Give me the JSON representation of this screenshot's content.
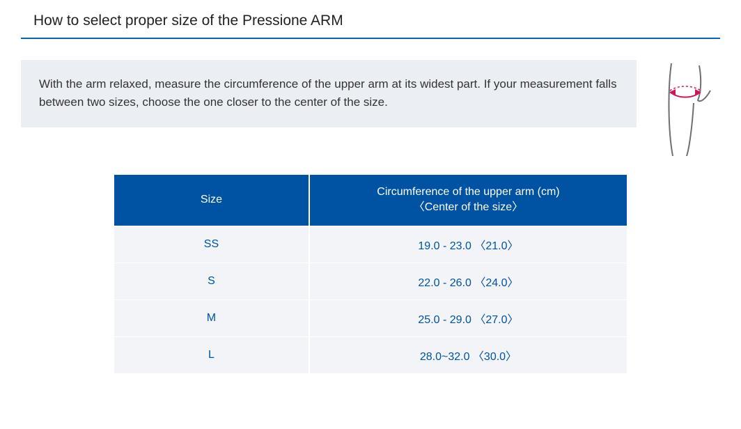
{
  "title": "How to select proper size of the Pressione ARM",
  "title_underline_color": "#0a63b0",
  "info": {
    "text": "With the arm relaxed, measure the circumference of the upper arm at its widest part. If your measurement falls between two sizes, choose the one closer to the center of the size.",
    "background_color": "#ebeff4",
    "text_color": "#333333"
  },
  "illustration": {
    "line_color": "#6f6f6f",
    "band_color": "#d4145a"
  },
  "table": {
    "header_bg": "#0052a3",
    "header_fg": "#ffffff",
    "row_bg": "#f2f4f8",
    "cell_fg": "#0052a3",
    "columns": [
      "Size",
      "Circumference of the upper arm (cm)\n〈Center of the size〉"
    ],
    "rows": [
      {
        "size": "SS",
        "circ": "19.0 - 23.0  〈21.0〉"
      },
      {
        "size": "S",
        "circ": "22.0 - 26.0 〈24.0〉"
      },
      {
        "size": "M",
        "circ": "25.0 - 29.0 〈27.0〉"
      },
      {
        "size": "L",
        "circ": "28.0~32.0 〈30.0〉"
      }
    ]
  }
}
